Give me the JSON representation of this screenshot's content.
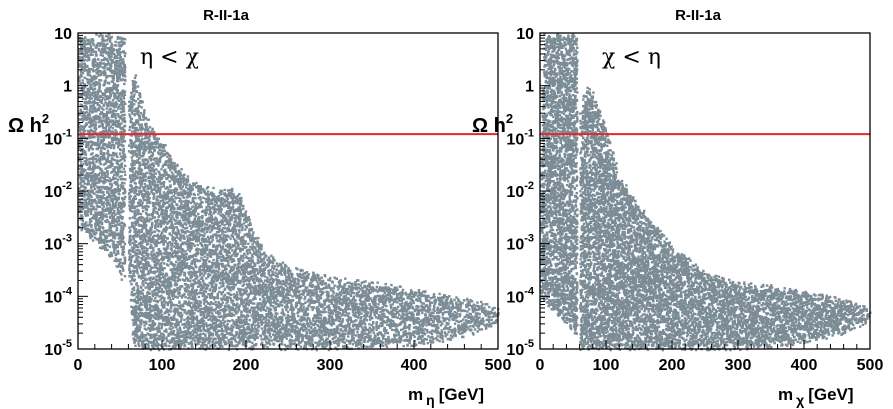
{
  "chart_data": [
    {
      "type": "scatter",
      "title": "R-II-1a",
      "annotation": "η < χ",
      "ylabel": {
        "main": "Ω h",
        "sup": "2"
      },
      "xlabel": {
        "main": "m",
        "sub": "η",
        "unit": "[GeV]"
      },
      "xlim": [
        0,
        500
      ],
      "ylim": [
        1e-05,
        10
      ],
      "yscale": "log",
      "grid": false,
      "x_ticks": [
        "0",
        "100",
        "200",
        "300",
        "400",
        "500"
      ],
      "y_ticks": [
        {
          "base": "10",
          "exp": "-5",
          "v": 1e-05
        },
        {
          "base": "10",
          "exp": "-4",
          "v": 0.0001
        },
        {
          "base": "10",
          "exp": "-3",
          "v": 0.001
        },
        {
          "base": "10",
          "exp": "-2",
          "v": 0.01
        },
        {
          "base": "10",
          "exp": "-1",
          "v": 0.1
        },
        {
          "base": "1",
          "exp": "",
          "v": 1
        },
        {
          "base": "10",
          "exp": "",
          "v": 10
        }
      ],
      "reference_line": {
        "y": 0.12,
        "color": "#e8262a"
      },
      "point_color": "#7b8c96",
      "gaps_x": [
        [
          54,
          60
        ]
      ],
      "upper_envelope": [
        [
          1,
          10
        ],
        [
          50,
          10
        ],
        [
          54,
          10
        ],
        [
          60,
          0.5
        ],
        [
          66,
          2
        ],
        [
          70,
          1
        ],
        [
          78,
          0.4
        ],
        [
          86,
          0.2
        ],
        [
          98,
          0.1
        ],
        [
          110,
          0.05
        ],
        [
          120,
          0.03
        ],
        [
          140,
          0.015
        ],
        [
          160,
          0.012
        ],
        [
          180,
          0.012
        ],
        [
          190,
          0.011
        ],
        [
          200,
          0.004
        ],
        [
          220,
          0.0008
        ],
        [
          250,
          0.0004
        ],
        [
          300,
          0.00025
        ],
        [
          350,
          0.0002
        ],
        [
          400,
          0.00015
        ],
        [
          450,
          0.0001
        ],
        [
          490,
          8e-05
        ],
        [
          500,
          6e-05
        ]
      ],
      "lower_envelope": [
        [
          1,
          0.002
        ],
        [
          20,
          0.001
        ],
        [
          40,
          0.0005
        ],
        [
          52,
          0.0002
        ],
        [
          60,
          0.0002
        ],
        [
          65,
          1e-05
        ],
        [
          120,
          1e-05
        ],
        [
          200,
          1e-05
        ],
        [
          300,
          1e-05
        ],
        [
          400,
          1.2e-05
        ],
        [
          450,
          1.6e-05
        ],
        [
          490,
          2.5e-05
        ],
        [
          500,
          3e-05
        ]
      ]
    },
    {
      "type": "scatter",
      "title": "R-II-1a",
      "annotation": "χ < η",
      "ylabel": {
        "main": "Ω h",
        "sup": "2"
      },
      "xlabel": {
        "main": "m",
        "sub": "χ",
        "unit": "[GeV]"
      },
      "xlim": [
        0,
        500
      ],
      "ylim": [
        1e-05,
        10
      ],
      "yscale": "log",
      "grid": false,
      "x_ticks": [
        "0",
        "100",
        "200",
        "300",
        "400",
        "500"
      ],
      "y_ticks": [
        {
          "base": "10",
          "exp": "-5",
          "v": 1e-05
        },
        {
          "base": "10",
          "exp": "-4",
          "v": 0.0001
        },
        {
          "base": "10",
          "exp": "-3",
          "v": 0.001
        },
        {
          "base": "10",
          "exp": "-2",
          "v": 0.01
        },
        {
          "base": "10",
          "exp": "-1",
          "v": 0.1
        },
        {
          "base": "1",
          "exp": "",
          "v": 1
        },
        {
          "base": "10",
          "exp": "",
          "v": 10
        }
      ],
      "reference_line": {
        "y": 0.12,
        "color": "#e8262a"
      },
      "point_color": "#7b8c96",
      "gaps_x": [
        [
          55,
          60
        ]
      ],
      "upper_envelope": [
        [
          1,
          0.05
        ],
        [
          5,
          10
        ],
        [
          50,
          10
        ],
        [
          54,
          10
        ],
        [
          60,
          0.3
        ],
        [
          66,
          1
        ],
        [
          75,
          1
        ],
        [
          85,
          0.5
        ],
        [
          100,
          0.15
        ],
        [
          110,
          0.05
        ],
        [
          120,
          0.02
        ],
        [
          140,
          0.008
        ],
        [
          160,
          0.004
        ],
        [
          180,
          0.002
        ],
        [
          200,
          0.001
        ],
        [
          220,
          0.0006
        ],
        [
          250,
          0.0003
        ],
        [
          300,
          0.0002
        ],
        [
          350,
          0.00017
        ],
        [
          400,
          0.00013
        ],
        [
          450,
          0.0001
        ],
        [
          490,
          7e-05
        ],
        [
          500,
          5e-05
        ]
      ],
      "lower_envelope": [
        [
          1,
          0.0001
        ],
        [
          20,
          5e-05
        ],
        [
          40,
          3e-05
        ],
        [
          52,
          2e-05
        ],
        [
          60,
          1e-05
        ],
        [
          120,
          1e-05
        ],
        [
          200,
          1e-05
        ],
        [
          300,
          1e-05
        ],
        [
          400,
          1.3e-05
        ],
        [
          450,
          1.8e-05
        ],
        [
          490,
          3e-05
        ],
        [
          500,
          4e-05
        ]
      ]
    }
  ]
}
